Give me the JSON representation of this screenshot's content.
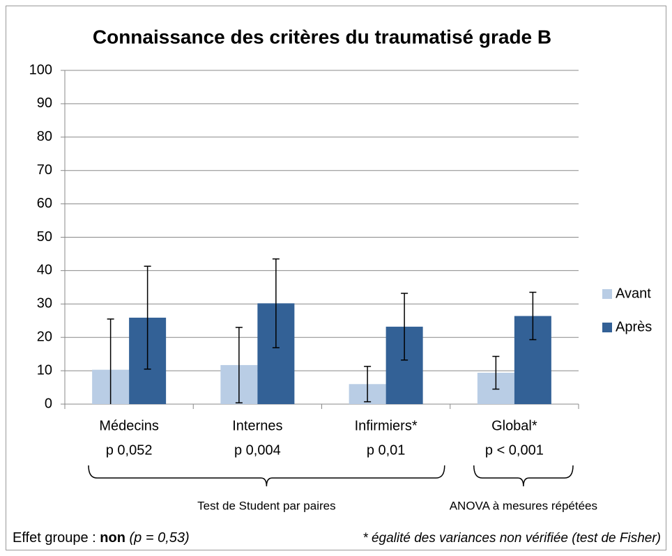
{
  "chart_data": {
    "type": "bar",
    "title": "Connaissance des critères du traumatisé grade B",
    "categories": [
      "Médecins",
      "Internes",
      "Infirmiers*",
      "Global*"
    ],
    "category_notes": [
      "p  0,052",
      "p  0,004",
      "p  0,01",
      "p  < 0,001"
    ],
    "series": [
      {
        "name": "Avant",
        "color": "#b9cde5",
        "values": [
          10.3,
          11.7,
          6.0,
          9.4
        ],
        "errors": [
          15.2,
          11.3,
          5.3,
          4.9
        ]
      },
      {
        "name": "Après",
        "color": "#336196",
        "values": [
          25.9,
          30.2,
          23.2,
          26.4
        ],
        "errors": [
          15.4,
          13.3,
          10.0,
          7.1
        ]
      }
    ],
    "ylim": [
      0,
      100
    ],
    "yticks": [
      0,
      10,
      20,
      30,
      40,
      50,
      60,
      70,
      80,
      90,
      100
    ],
    "grid": true,
    "legend": "right",
    "groups": [
      {
        "label": "Test de Student par paires",
        "from": 0,
        "to": 2
      },
      {
        "label": "ANOVA à mesures répétées",
        "from": 3,
        "to": 3
      }
    ],
    "footer": {
      "label": "Effet groupe :",
      "answer": "non",
      "p": "(p = 0,53)"
    },
    "note": "* égalité des variances non vérifiée (test de Fisher)"
  }
}
